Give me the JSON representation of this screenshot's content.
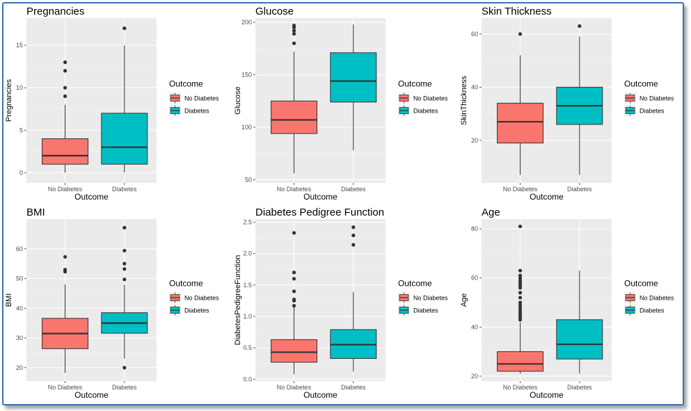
{
  "chart_data": [
    {
      "type": "boxplot",
      "title": "Pregnancies",
      "xlabel": "Outcome",
      "ylabel": "Pregnancies",
      "ylim": [
        -1.2,
        18.2
      ],
      "yticks": [
        0,
        5,
        10,
        15
      ],
      "categories": [
        "No Diabetes",
        "Diabetes"
      ],
      "boxes": [
        {
          "category": "No Diabetes",
          "q1": 1,
          "median": 2,
          "q3": 4,
          "whisker_low": 0,
          "whisker_high": 8,
          "outliers": [
            9,
            10,
            12,
            13
          ]
        },
        {
          "category": "Diabetes",
          "q1": 1,
          "median": 3,
          "q3": 7,
          "whisker_low": 0,
          "whisker_high": 15,
          "outliers": [
            17
          ]
        }
      ],
      "legend": {
        "title": "Outcome",
        "items": [
          {
            "label": "No Diabetes",
            "color": "#F8766D"
          },
          {
            "label": "Diabetes",
            "color": "#00BFC4"
          }
        ]
      }
    },
    {
      "type": "boxplot",
      "title": "Glucose",
      "xlabel": "Outcome",
      "ylabel": "Glucose",
      "ylim": [
        47,
        204
      ],
      "yticks": [
        50,
        100,
        150,
        200
      ],
      "categories": [
        "No Diabetes",
        "Diabetes"
      ],
      "boxes": [
        {
          "category": "No Diabetes",
          "q1": 94,
          "median": 107,
          "q3": 125,
          "whisker_low": 56,
          "whisker_high": 172,
          "outliers": [
            180,
            189,
            192,
            195,
            197
          ]
        },
        {
          "category": "Diabetes",
          "q1": 124,
          "median": 144,
          "q3": 171,
          "whisker_low": 78,
          "whisker_high": 198,
          "outliers": []
        }
      ],
      "legend": {
        "title": "Outcome",
        "items": [
          {
            "label": "No Diabetes",
            "color": "#F8766D"
          },
          {
            "label": "Diabetes",
            "color": "#00BFC4"
          }
        ]
      }
    },
    {
      "type": "boxplot",
      "title": "Skin Thickness",
      "xlabel": "Outcome",
      "ylabel": "SkinThickness",
      "ylim": [
        4,
        66
      ],
      "yticks": [
        20,
        40,
        60
      ],
      "categories": [
        "No Diabetes",
        "Diabetes"
      ],
      "boxes": [
        {
          "category": "No Diabetes",
          "q1": 19,
          "median": 27,
          "q3": 34,
          "whisker_low": 7,
          "whisker_high": 52,
          "outliers": [
            60
          ]
        },
        {
          "category": "Diabetes",
          "q1": 26,
          "median": 33,
          "q3": 40,
          "whisker_low": 7,
          "whisker_high": 59,
          "outliers": [
            63
          ]
        }
      ],
      "legend": {
        "title": "Outcome",
        "items": [
          {
            "label": "No Diabetes",
            "color": "#F8766D"
          },
          {
            "label": "Diabetes",
            "color": "#00BFC4"
          }
        ]
      }
    },
    {
      "type": "boxplot",
      "title": "BMI",
      "xlabel": "Outcome",
      "ylabel": "BMI",
      "ylim": [
        15.5,
        70
      ],
      "yticks": [
        20,
        30,
        40,
        50,
        60
      ],
      "categories": [
        "No Diabetes",
        "Diabetes"
      ],
      "boxes": [
        {
          "category": "No Diabetes",
          "q1": 26.4,
          "median": 31.5,
          "q3": 36.6,
          "whisker_low": 18.2,
          "whisker_high": 48,
          "outliers": [
            52.3,
            53,
            57.3
          ]
        },
        {
          "category": "Diabetes",
          "q1": 31.6,
          "median": 35,
          "q3": 38.5,
          "whisker_low": 23,
          "whisker_high": 47.9,
          "outliers": [
            20,
            49.7,
            53.2,
            55,
            59.4,
            67.1
          ]
        }
      ],
      "legend": {
        "title": "Outcome",
        "items": [
          {
            "label": "No Diabetes",
            "color": "#F8766D"
          },
          {
            "label": "Diabetes",
            "color": "#00BFC4"
          }
        ]
      }
    },
    {
      "type": "boxplot",
      "title": "Diabetes Pedigree Function",
      "xlabel": "Outcome",
      "ylabel": "DiabetesPedigreeFunction",
      "ylim": [
        -0.03,
        2.55
      ],
      "yticks": [
        "0.0",
        "0.5",
        "1.0",
        "1.5",
        "2.0",
        "2.5"
      ],
      "categories": [
        "No Diabetes",
        "Diabetes"
      ],
      "boxes": [
        {
          "category": "No Diabetes",
          "q1": 0.27,
          "median": 0.43,
          "q3": 0.63,
          "whisker_low": 0.08,
          "whisker_high": 1.15,
          "outliers": [
            1.17,
            1.25,
            1.27,
            1.4,
            1.6,
            1.7,
            2.33
          ]
        },
        {
          "category": "Diabetes",
          "q1": 0.33,
          "median": 0.55,
          "q3": 0.79,
          "whisker_low": 0.12,
          "whisker_high": 1.39,
          "outliers": [
            2.14,
            2.29,
            2.42
          ]
        }
      ],
      "legend": {
        "title": "Outcome",
        "items": [
          {
            "label": "No Diabetes",
            "color": "#F8766D"
          },
          {
            "label": "Diabetes",
            "color": "#00BFC4"
          }
        ]
      }
    },
    {
      "type": "boxplot",
      "title": "Age",
      "xlabel": "Outcome",
      "ylabel": "Age",
      "ylim": [
        18,
        84
      ],
      "yticks": [
        20,
        40,
        60,
        80
      ],
      "categories": [
        "No Diabetes",
        "Diabetes"
      ],
      "boxes": [
        {
          "category": "No Diabetes",
          "q1": 22,
          "median": 25,
          "q3": 30,
          "whisker_low": 21,
          "whisker_high": 42,
          "outliers": [
            43,
            44,
            45,
            46,
            47,
            48,
            49,
            50,
            52,
            54,
            56,
            57,
            58,
            59,
            60,
            61,
            63,
            81
          ]
        },
        {
          "category": "Diabetes",
          "q1": 27,
          "median": 33,
          "q3": 43,
          "whisker_low": 21,
          "whisker_high": 63,
          "outliers": []
        }
      ],
      "legend": {
        "title": "Outcome",
        "items": [
          {
            "label": "No Diabetes",
            "color": "#F8766D"
          },
          {
            "label": "Diabetes",
            "color": "#00BFC4"
          }
        ]
      }
    }
  ],
  "colors": {
    "panel_bg": "#EBEBEB",
    "grid_major": "#FFFFFF",
    "box_line": "#333333",
    "tick_text": "#4D4D4D",
    "frame_border": "#3A70B8"
  }
}
